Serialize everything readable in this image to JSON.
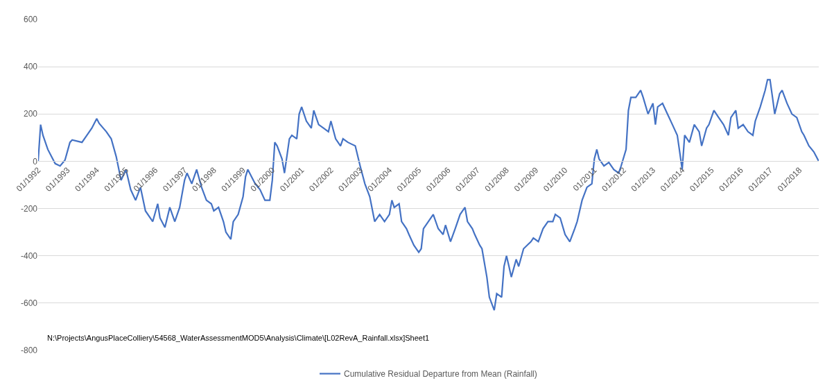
{
  "chart_data": {
    "type": "line",
    "x": [
      "1992-01",
      "1992-02",
      "1992-03",
      "1992-05",
      "1992-08",
      "1992-10",
      "1992-12",
      "1993-02",
      "1993-03",
      "1993-07",
      "1993-09",
      "1993-11",
      "1994-01",
      "1994-02",
      "1994-05",
      "1994-07",
      "1994-09",
      "1994-11",
      "1995-01",
      "1995-03",
      "1995-05",
      "1995-07",
      "1995-09",
      "1995-12",
      "1996-02",
      "1996-03",
      "1996-05",
      "1996-07",
      "1996-09",
      "1996-11",
      "1997-01",
      "1997-02",
      "1997-04",
      "1997-06",
      "1997-08",
      "1997-10",
      "1997-12",
      "1998-01",
      "1998-03",
      "1998-05",
      "1998-06",
      "1998-08",
      "1998-09",
      "1998-11",
      "1999-01",
      "1999-02",
      "1999-03",
      "1999-06",
      "1999-08",
      "1999-10",
      "1999-12",
      "2000-01",
      "2000-02",
      "2000-03",
      "2000-05",
      "2000-06",
      "2000-08",
      "2000-09",
      "2000-11",
      "2000-12",
      "2001-01",
      "2001-03",
      "2001-05",
      "2001-06",
      "2001-08",
      "2001-10",
      "2001-12",
      "2002-01",
      "2002-03",
      "2002-05",
      "2002-06",
      "2002-08",
      "2002-11",
      "2003-01",
      "2003-03",
      "2003-05",
      "2003-07",
      "2003-09",
      "2003-11",
      "2004-01",
      "2004-02",
      "2004-03",
      "2004-05",
      "2004-06",
      "2004-08",
      "2004-09",
      "2004-11",
      "2005-01",
      "2005-02",
      "2005-03",
      "2005-05",
      "2005-07",
      "2005-09",
      "2005-11",
      "2005-12",
      "2006-02",
      "2006-04",
      "2006-06",
      "2006-08",
      "2006-09",
      "2006-11",
      "2006-12",
      "2007-02",
      "2007-03",
      "2007-05",
      "2007-06",
      "2007-08",
      "2007-09",
      "2007-11",
      "2007-12",
      "2008-01",
      "2008-02",
      "2008-03",
      "2008-05",
      "2008-06",
      "2008-08",
      "2008-11",
      "2008-12",
      "2009-02",
      "2009-04",
      "2009-06",
      "2009-08",
      "2009-09",
      "2009-11",
      "2010-01",
      "2010-03",
      "2010-05",
      "2010-06",
      "2010-08",
      "2010-10",
      "2010-12",
      "2011-01",
      "2011-02",
      "2011-03",
      "2011-05",
      "2011-07",
      "2011-09",
      "2011-11",
      "2011-12",
      "2012-02",
      "2012-03",
      "2012-04",
      "2012-06",
      "2012-08",
      "2012-09",
      "2012-11",
      "2013-01",
      "2013-02",
      "2013-03",
      "2013-05",
      "2013-07",
      "2013-09",
      "2013-11",
      "2013-12",
      "2014-01",
      "2014-02",
      "2014-04",
      "2014-06",
      "2014-08",
      "2014-09",
      "2014-11",
      "2014-12",
      "2015-02",
      "2015-04",
      "2015-06",
      "2015-08",
      "2015-09",
      "2015-11",
      "2015-12",
      "2016-02",
      "2016-04",
      "2016-06",
      "2016-07",
      "2016-09",
      "2016-11",
      "2016-12",
      "2017-01",
      "2017-02",
      "2017-03",
      "2017-05",
      "2017-06",
      "2017-08",
      "2017-10",
      "2017-12",
      "2018-02",
      "2018-03",
      "2018-05",
      "2018-07",
      "2018-08",
      "2018-09"
    ],
    "series": [
      {
        "name": "Cumulative Residual Departure from Mean (Rainfall)",
        "color": "#4472c4",
        "values": [
          0,
          155,
          110,
          50,
          -10,
          -20,
          5,
          80,
          90,
          80,
          110,
          140,
          180,
          160,
          125,
          95,
          20,
          -80,
          -35,
          -120,
          -165,
          -110,
          -210,
          -255,
          -180,
          -240,
          -280,
          -195,
          -255,
          -195,
          -80,
          -50,
          -95,
          -35,
          -110,
          -165,
          -180,
          -210,
          -195,
          -255,
          -300,
          -330,
          -255,
          -225,
          -150,
          -65,
          -35,
          -95,
          -120,
          -165,
          -165,
          -80,
          80,
          65,
          10,
          -50,
          95,
          110,
          95,
          200,
          230,
          170,
          140,
          215,
          155,
          140,
          125,
          170,
          95,
          65,
          95,
          80,
          65,
          -20,
          -95,
          -150,
          -255,
          -225,
          -255,
          -225,
          -165,
          -195,
          -180,
          -255,
          -285,
          -310,
          -355,
          -385,
          -370,
          -285,
          -255,
          -225,
          -285,
          -310,
          -270,
          -340,
          -285,
          -225,
          -195,
          -255,
          -285,
          -310,
          -355,
          -370,
          -490,
          -575,
          -630,
          -560,
          -575,
          -445,
          -400,
          -445,
          -490,
          -415,
          -445,
          -370,
          -340,
          -325,
          -340,
          -285,
          -255,
          -255,
          -225,
          -240,
          -310,
          -340,
          -285,
          -255,
          -165,
          -110,
          -95,
          10,
          50,
          10,
          -20,
          -5,
          -35,
          -50,
          -20,
          50,
          215,
          270,
          270,
          300,
          270,
          200,
          245,
          155,
          230,
          245,
          200,
          155,
          110,
          40,
          -35,
          110,
          80,
          155,
          125,
          65,
          140,
          155,
          215,
          185,
          155,
          110,
          185,
          215,
          140,
          155,
          125,
          110,
          170,
          230,
          300,
          345,
          345,
          270,
          200,
          285,
          300,
          245,
          200,
          185,
          125,
          110,
          65,
          40,
          20,
          0
        ]
      }
    ],
    "xlim": [
      "1992-01",
      "2018-09"
    ],
    "xticks": [
      {
        "value": "1992-01",
        "label": "01/1992"
      },
      {
        "value": "1993-01",
        "label": "01/1993"
      },
      {
        "value": "1994-01",
        "label": "01/1994"
      },
      {
        "value": "1995-01",
        "label": "01/1995"
      },
      {
        "value": "1996-01",
        "label": "01/1996"
      },
      {
        "value": "1997-01",
        "label": "01/1997"
      },
      {
        "value": "1998-01",
        "label": "01/1998"
      },
      {
        "value": "1999-01",
        "label": "01/1999"
      },
      {
        "value": "2000-01",
        "label": "01/2000"
      },
      {
        "value": "2001-01",
        "label": "01/2001"
      },
      {
        "value": "2002-01",
        "label": "01/2002"
      },
      {
        "value": "2003-01",
        "label": "01/2003"
      },
      {
        "value": "2004-01",
        "label": "01/2004"
      },
      {
        "value": "2005-01",
        "label": "01/2005"
      },
      {
        "value": "2006-01",
        "label": "01/2006"
      },
      {
        "value": "2007-01",
        "label": "01/2007"
      },
      {
        "value": "2008-01",
        "label": "01/2008"
      },
      {
        "value": "2009-01",
        "label": "01/2009"
      },
      {
        "value": "2010-01",
        "label": "01/2010"
      },
      {
        "value": "2011-01",
        "label": "01/2011"
      },
      {
        "value": "2012-01",
        "label": "01/2012"
      },
      {
        "value": "2013-01",
        "label": "01/2013"
      },
      {
        "value": "2014-01",
        "label": "01/2014"
      },
      {
        "value": "2015-01",
        "label": "01/2015"
      },
      {
        "value": "2016-01",
        "label": "01/2016"
      },
      {
        "value": "2017-01",
        "label": "01/2017"
      },
      {
        "value": "2018-01",
        "label": "01/2018"
      }
    ],
    "ylim": [
      -800,
      600
    ],
    "yticks": [
      -800,
      -600,
      -400,
      -200,
      0,
      200,
      400,
      600
    ],
    "grid": "y",
    "legend": "bottom",
    "annotations": [
      "N:\\Projects\\AngusPlaceColliery\\54568_WaterAssessmentMOD5\\Analysis\\Climate\\[L02RevA_Rainfall.xlsx]Sheet1"
    ]
  }
}
